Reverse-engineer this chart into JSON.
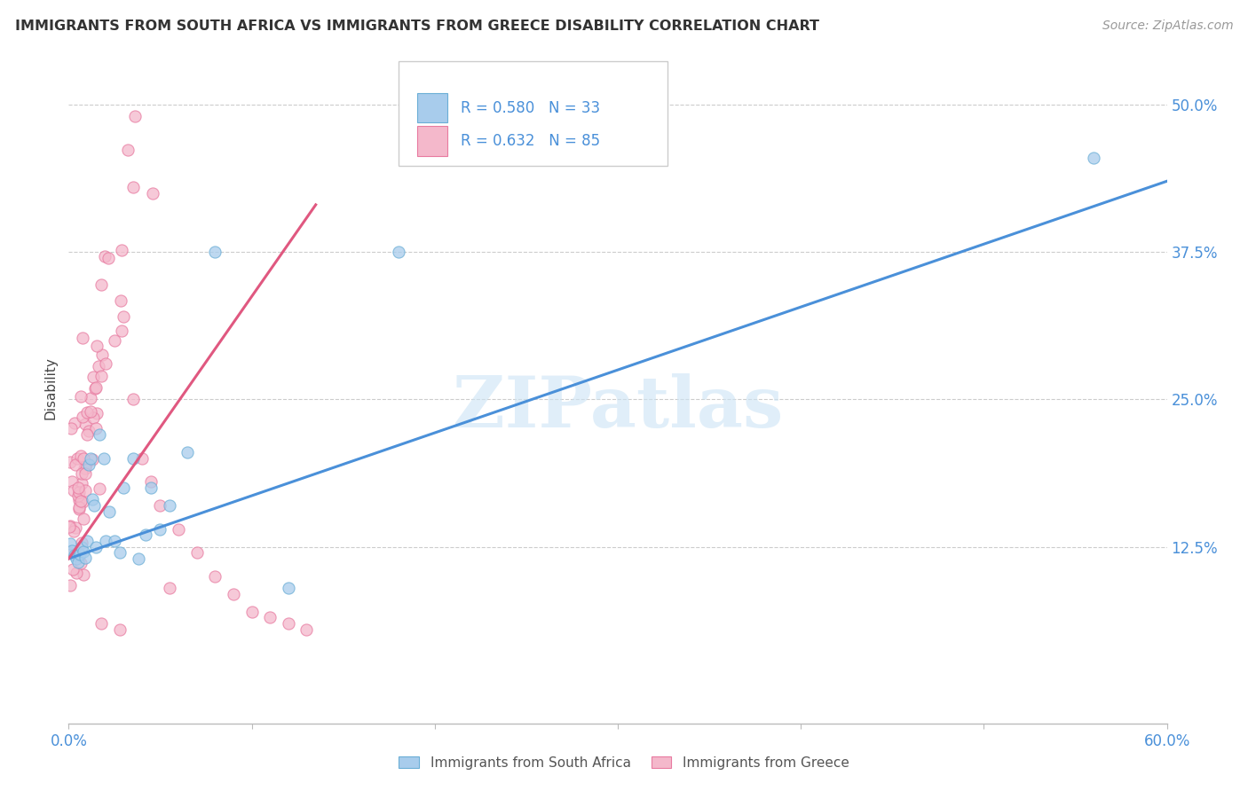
{
  "title": "IMMIGRANTS FROM SOUTH AFRICA VS IMMIGRANTS FROM GREECE DISABILITY CORRELATION CHART",
  "source": "Source: ZipAtlas.com",
  "ylabel": "Disability",
  "ytick_labels": [
    "12.5%",
    "25.0%",
    "37.5%",
    "50.0%"
  ],
  "ytick_values": [
    0.125,
    0.25,
    0.375,
    0.5
  ],
  "xlim": [
    0.0,
    0.6
  ],
  "ylim": [
    -0.025,
    0.545
  ],
  "color_blue": "#a8ccec",
  "color_blue_edge": "#6aaed6",
  "color_pink": "#f4b8cb",
  "color_pink_edge": "#e87aa0",
  "color_blue_line": "#4a90d9",
  "color_pink_line": "#e05880",
  "legend_text_color": "#4a90d9",
  "legend_R_blue": "R = 0.580",
  "legend_N_blue": "N = 33",
  "legend_R_pink": "R = 0.632",
  "legend_N_pink": "N = 85",
  "watermark": "ZIPatlas",
  "blue_line_x": [
    0.0,
    0.6
  ],
  "blue_line_y": [
    0.115,
    0.435
  ],
  "pink_line_x": [
    0.0,
    0.135
  ],
  "pink_line_y": [
    0.115,
    0.415
  ]
}
